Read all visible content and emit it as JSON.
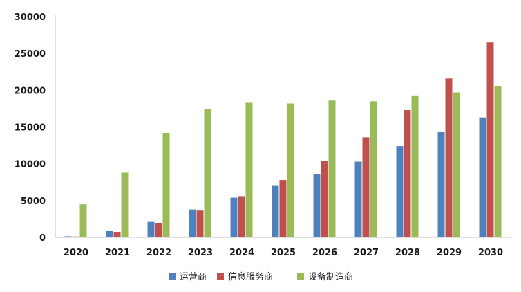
{
  "chart_data": {
    "type": "bar",
    "categories": [
      "2020",
      "2021",
      "2022",
      "2023",
      "2024",
      "2025",
      "2026",
      "2027",
      "2028",
      "2029",
      "2030"
    ],
    "series": [
      {
        "name": "运营商",
        "color": "#4f81bd",
        "values": [
          150,
          850,
          2100,
          3800,
          5400,
          7000,
          8600,
          10300,
          12400,
          14300,
          16300
        ]
      },
      {
        "name": "信息服务商",
        "color": "#c0504d",
        "values": [
          120,
          700,
          1950,
          3650,
          5600,
          7800,
          10400,
          13600,
          17300,
          21600,
          26500
        ]
      },
      {
        "name": "设备制造商",
        "color": "#9bbb59",
        "values": [
          4500,
          8800,
          14200,
          17400,
          18300,
          18200,
          18600,
          18500,
          19200,
          19700,
          20500
        ]
      }
    ],
    "ylim": [
      0,
      30000
    ],
    "yticks": [
      "0",
      "5000",
      "10000",
      "15000",
      "20000",
      "25000",
      "30000"
    ],
    "grid": false,
    "legend_position": "bottom"
  }
}
